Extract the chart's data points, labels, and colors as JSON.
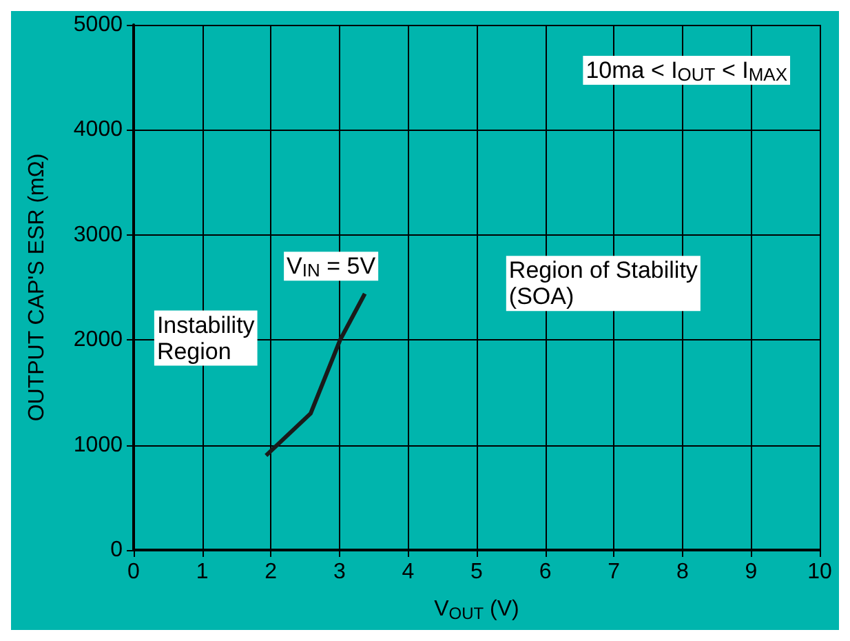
{
  "chart_data": {
    "type": "line",
    "xlabel": "V$_{OUT}$ (V)",
    "ylabel": "OUTPUT CAP'S ESR (mΩ)",
    "x": [
      1.93,
      2.58,
      3.01,
      3.37
    ],
    "series": [
      {
        "color": "#1a1a1a",
        "values": [
          900,
          1300,
          2000,
          2440
        ]
      }
    ],
    "xlim": [
      0,
      10
    ],
    "xticks": [
      0,
      1,
      2,
      3,
      4,
      5,
      6,
      7,
      8,
      9,
      10
    ],
    "ylim": [
      0,
      5000
    ],
    "yticks": [
      0,
      1000,
      2000,
      3000,
      4000,
      5000
    ],
    "grid": true,
    "marker": "none",
    "line_style": "solid",
    "annotations": [
      "V$_{IN}$ = 5V",
      "Instability\nRegion",
      "Region of Stability\n(SOA)",
      "10ma < I$_{OUT}$ < I$_{MAX}$"
    ]
  }
}
